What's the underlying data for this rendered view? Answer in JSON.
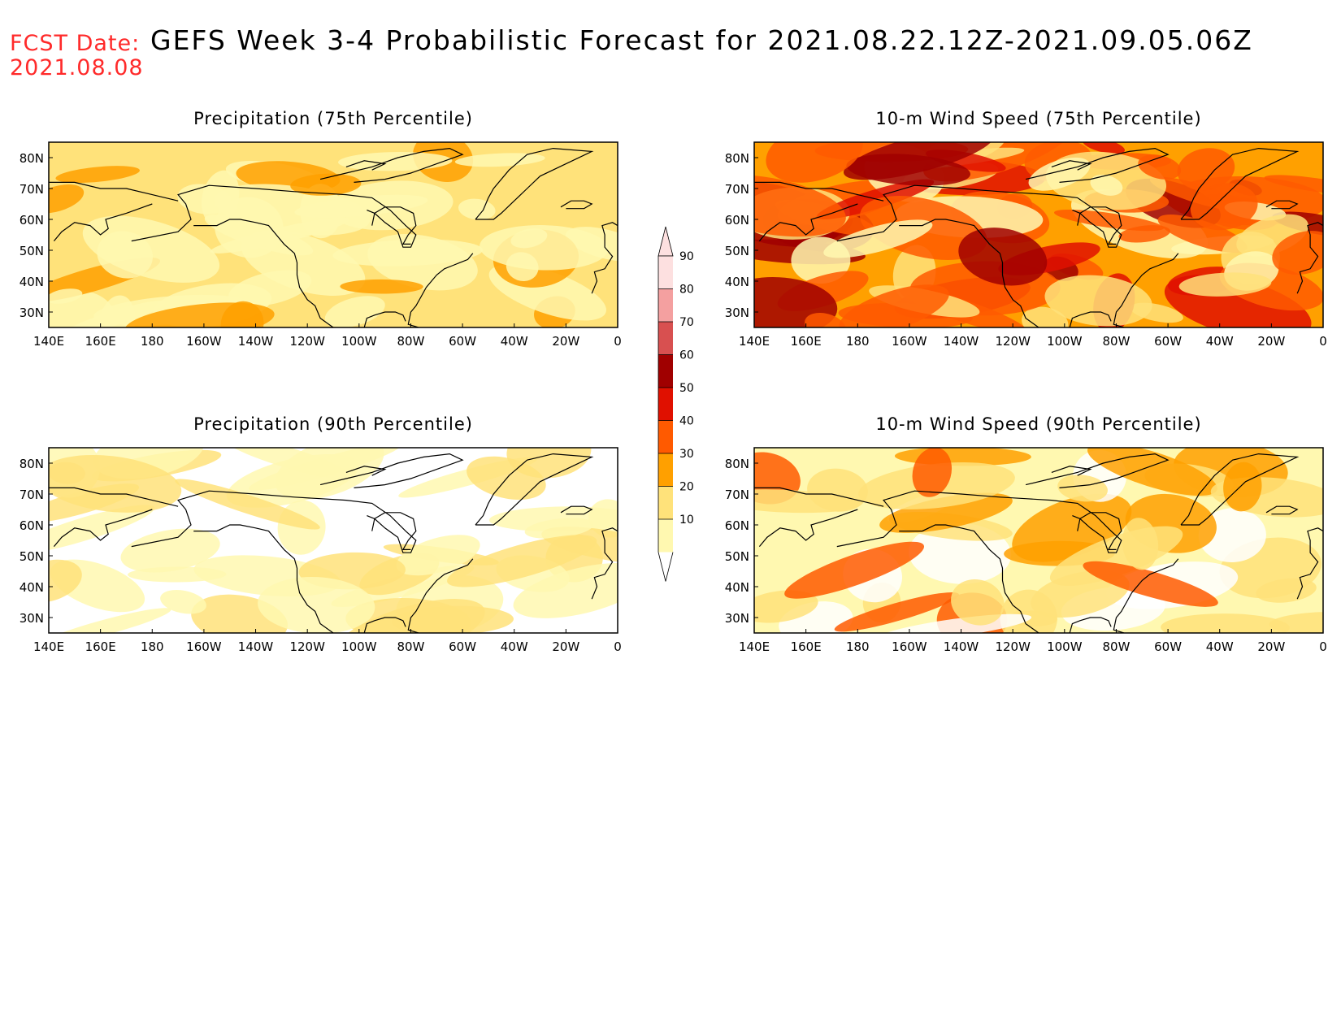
{
  "header": {
    "fcst_label": "FCST Date:",
    "fcst_date": "2021.08.08",
    "title": "GEFS Week 3-4 Probabilistic Forecast for 2021.08.22.12Z-2021.09.05.06Z"
  },
  "axes": {
    "lon_ticks": [
      "140E",
      "160E",
      "180",
      "160W",
      "140W",
      "120W",
      "100W",
      "80W",
      "60W",
      "40W",
      "20W",
      "0"
    ],
    "lat_ticks": [
      "80N",
      "70N",
      "60N",
      "50N",
      "40N",
      "30N"
    ],
    "lon_range_deg_east": [
      140,
      360
    ],
    "lat_range": [
      25,
      85
    ]
  },
  "panels": [
    {
      "title": "Precipitation (75th Percentile)",
      "base_level": 20,
      "palette": "precip75"
    },
    {
      "title": "10-m Wind Speed (75th Percentile)",
      "base_level": 40,
      "palette": "wind75"
    },
    {
      "title": "Precipitation (90th Percentile)",
      "base_level": 10,
      "palette": "precip90"
    },
    {
      "title": "10-m Wind Speed (90th Percentile)",
      "base_level": 20,
      "palette": "wind90"
    }
  ],
  "colorbar": {
    "labels": [
      "90",
      "80",
      "70",
      "60",
      "50",
      "40",
      "30",
      "20",
      "10"
    ],
    "colors": [
      "#fde0e0",
      "#f4a0a0",
      "#d85050",
      "#a00000",
      "#e01000",
      "#ff5a00",
      "#ffa000",
      "#ffe27a",
      "#fff8b0"
    ]
  },
  "colors": {
    "level_10_20": "#fff8b0",
    "level_20_30": "#ffe27a",
    "level_30_40": "#ffa000",
    "level_40_50": "#ff5a00",
    "level_50_60": "#e01000",
    "level_60_70": "#a00000"
  }
}
